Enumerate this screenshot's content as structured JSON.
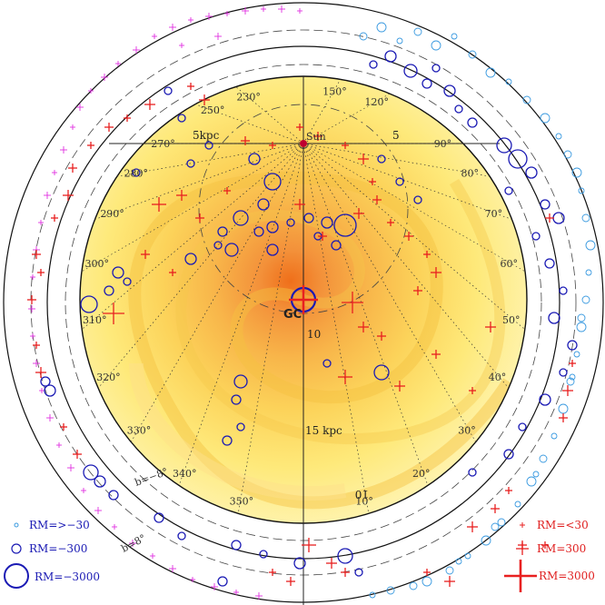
{
  "labels": {
    "sun": "Sun",
    "gc": "GC",
    "dist_5": "5",
    "dist_5kpc": "5kpc",
    "dist_10": "10",
    "dist_15": "15 kpc",
    "b_minus": "b=−8°",
    "b_minus_small": "b=−8°",
    "b_plus": "b=8°",
    "dist_inverted": "10"
  },
  "longitudes": [
    {
      "text": "150°",
      "deg": 150
    },
    {
      "text": "120°",
      "deg": 120
    },
    {
      "text": "90°",
      "deg": 90
    },
    {
      "text": "80°",
      "deg": 80
    },
    {
      "text": "70°",
      "deg": 70
    },
    {
      "text": "60°",
      "deg": 60
    },
    {
      "text": "50°",
      "deg": 50
    },
    {
      "text": "40°",
      "deg": 40
    },
    {
      "text": "30°",
      "deg": 30
    },
    {
      "text": "20°",
      "deg": 20
    },
    {
      "text": "10°",
      "deg": 10
    },
    {
      "text": "350°",
      "deg": 350
    },
    {
      "text": "340°",
      "deg": 340
    },
    {
      "text": "330°",
      "deg": 330
    },
    {
      "text": "320°",
      "deg": 320
    },
    {
      "text": "310°",
      "deg": 310
    },
    {
      "text": "300°",
      "deg": 300
    },
    {
      "text": "290°",
      "deg": 290
    },
    {
      "text": "280°",
      "deg": 280
    },
    {
      "text": "270°",
      "deg": 270
    },
    {
      "text": "250°",
      "deg": 250
    },
    {
      "text": "230°",
      "deg": 230
    }
  ],
  "legend": {
    "neg_small": "RM=>−30",
    "neg_mid": "RM=−300",
    "neg_big": "RM=−3000",
    "pos_small": "RM=<30",
    "pos_mid": "RM=300",
    "pos_big": "RM=3000"
  },
  "colors": {
    "negative_rm": "#1a1ab4",
    "negative_rm_outer": "#3a9ae0",
    "positive_rm": "#e82020",
    "positive_rm_outer": "#e030e0",
    "map_inner": "#f08020",
    "map_outer": "#fff2b0"
  },
  "markers": {
    "neg": [
      [
        411,
        71,
        4
      ],
      [
        430,
        62,
        6
      ],
      [
        452,
        78,
        7
      ],
      [
        470,
        92,
        5
      ],
      [
        480,
        75,
        4
      ],
      [
        495,
        100,
        6
      ],
      [
        505,
        120,
        4
      ],
      [
        520,
        135,
        5
      ],
      [
        555,
        160,
        8
      ],
      [
        570,
        175,
        10
      ],
      [
        585,
        190,
        6
      ],
      [
        560,
        210,
        4
      ],
      [
        600,
        225,
        5
      ],
      [
        615,
        240,
        6
      ],
      [
        590,
        260,
        4
      ],
      [
        605,
        290,
        5
      ],
      [
        620,
        320,
        4
      ],
      [
        610,
        350,
        6
      ],
      [
        630,
        380,
        5
      ],
      [
        620,
        410,
        4
      ],
      [
        600,
        440,
        6
      ],
      [
        575,
        470,
        4
      ],
      [
        560,
        500,
        5
      ],
      [
        520,
        520,
        4
      ],
      [
        280,
        175,
        6
      ],
      [
        300,
        200,
        9
      ],
      [
        290,
        225,
        6
      ],
      [
        265,
        240,
        8
      ],
      [
        245,
        255,
        5
      ],
      [
        255,
        275,
        7
      ],
      [
        300,
        250,
        6
      ],
      [
        320,
        245,
        4
      ],
      [
        340,
        240,
        5
      ],
      [
        360,
        245,
        6
      ],
      [
        380,
        248,
        12
      ],
      [
        350,
        260,
        4
      ],
      [
        370,
        270,
        5
      ],
      [
        300,
        275,
        6
      ],
      [
        285,
        255,
        5
      ],
      [
        130,
        300,
        6
      ],
      [
        120,
        320,
        5
      ],
      [
        98,
        335,
        9
      ],
      [
        140,
        310,
        4
      ],
      [
        210,
        285,
        6
      ],
      [
        240,
        270,
        4
      ],
      [
        334,
        330,
        13
      ],
      [
        420,
        410,
        8
      ],
      [
        360,
        400,
        4
      ],
      [
        265,
        420,
        7
      ],
      [
        260,
        440,
        5
      ],
      [
        265,
        470,
        4
      ],
      [
        250,
        485,
        5
      ],
      [
        100,
        520,
        8
      ],
      [
        110,
        530,
        6
      ],
      [
        125,
        545,
        5
      ],
      [
        50,
        420,
        5
      ],
      [
        55,
        430,
        6
      ],
      [
        175,
        570,
        5
      ],
      [
        200,
        590,
        4
      ],
      [
        260,
        600,
        5
      ],
      [
        290,
        610,
        4
      ],
      [
        330,
        620,
        6
      ],
      [
        380,
        612,
        8
      ],
      [
        395,
        630,
        4
      ],
      [
        245,
        640,
        5
      ],
      [
        150,
        190,
        4
      ],
      [
        210,
        180,
        4
      ],
      [
        230,
        160,
        4
      ],
      [
        200,
        130,
        4
      ],
      [
        185,
        100,
        4
      ],
      [
        420,
        175,
        4
      ],
      [
        440,
        200,
        4
      ],
      [
        460,
        220,
        4
      ]
    ],
    "pos": [
      [
        225,
        110,
        6
      ],
      [
        210,
        95,
        4
      ],
      [
        165,
        115,
        6
      ],
      [
        140,
        130,
        4
      ],
      [
        120,
        140,
        5
      ],
      [
        100,
        160,
        4
      ],
      [
        80,
        185,
        5
      ],
      [
        75,
        215,
        6
      ],
      [
        60,
        240,
        4
      ],
      [
        40,
        280,
        5
      ],
      [
        45,
        300,
        4
      ],
      [
        35,
        330,
        5
      ],
      [
        40,
        380,
        4
      ],
      [
        45,
        410,
        6
      ],
      [
        70,
        470,
        4
      ],
      [
        85,
        500,
        5
      ],
      [
        175,
        225,
        8
      ],
      [
        200,
        215,
        6
      ],
      [
        220,
        240,
        5
      ],
      [
        250,
        210,
        4
      ],
      [
        330,
        140,
        4
      ],
      [
        350,
        150,
        5
      ],
      [
        380,
        160,
        4
      ],
      [
        400,
        175,
        6
      ],
      [
        410,
        200,
        4
      ],
      [
        415,
        220,
        5
      ],
      [
        395,
        235,
        6
      ],
      [
        430,
        245,
        4
      ],
      [
        450,
        260,
        5
      ],
      [
        470,
        280,
        4
      ],
      [
        480,
        300,
        6
      ],
      [
        460,
        320,
        5
      ],
      [
        388,
        333,
        12
      ],
      [
        400,
        360,
        6
      ],
      [
        420,
        370,
        5
      ],
      [
        380,
        415,
        8
      ],
      [
        440,
        425,
        6
      ],
      [
        480,
        390,
        5
      ],
      [
        520,
        430,
        4
      ],
      [
        540,
        360,
        6
      ],
      [
        125,
        345,
        12
      ],
      [
        160,
        280,
        5
      ],
      [
        190,
        300,
        4
      ],
      [
        330,
        225,
        6
      ],
      [
        355,
        260,
        5
      ],
      [
        300,
        160,
        4
      ],
      [
        270,
        155,
        5
      ],
      [
        340,
        600,
        8
      ],
      [
        365,
        620,
        6
      ],
      [
        380,
        630,
        5
      ],
      [
        300,
        630,
        4
      ],
      [
        320,
        640,
        5
      ],
      [
        520,
        580,
        6
      ],
      [
        545,
        560,
        5
      ],
      [
        560,
        540,
        4
      ],
      [
        620,
        460,
        5
      ],
      [
        625,
        430,
        6
      ],
      [
        630,
        400,
        4
      ],
      [
        600,
        600,
        4
      ],
      [
        575,
        600,
        5
      ],
      [
        495,
        640,
        6
      ],
      [
        470,
        630,
        4
      ],
      [
        605,
        240,
        5
      ]
    ],
    "outer_neg": [
      [
        400,
        40,
        4
      ],
      [
        420,
        30,
        5
      ],
      [
        440,
        45,
        3
      ],
      [
        460,
        35,
        4
      ],
      [
        480,
        50,
        5
      ],
      [
        500,
        40,
        3
      ],
      [
        520,
        60,
        4
      ],
      [
        540,
        80,
        5
      ],
      [
        560,
        90,
        3
      ],
      [
        580,
        110,
        4
      ],
      [
        600,
        130,
        5
      ],
      [
        615,
        150,
        3
      ],
      [
        625,
        170,
        4
      ],
      [
        635,
        190,
        5
      ],
      [
        640,
        210,
        3
      ],
      [
        645,
        240,
        4
      ],
      [
        650,
        270,
        5
      ],
      [
        648,
        300,
        3
      ],
      [
        645,
        330,
        4
      ],
      [
        640,
        360,
        5
      ],
      [
        635,
        390,
        3
      ],
      [
        628,
        420,
        4
      ],
      [
        620,
        450,
        5
      ],
      [
        610,
        480,
        3
      ],
      [
        598,
        505,
        4
      ],
      [
        585,
        530,
        5
      ],
      [
        570,
        555,
        3
      ],
      [
        552,
        575,
        4
      ],
      [
        535,
        595,
        5
      ],
      [
        515,
        612,
        3
      ],
      [
        495,
        628,
        4
      ],
      [
        470,
        640,
        5
      ],
      [
        430,
        650,
        4
      ],
      [
        410,
        655,
        3
      ],
      [
        455,
        645,
        4
      ],
      [
        505,
        618,
        3
      ],
      [
        545,
        580,
        4
      ],
      [
        590,
        522,
        3
      ],
      [
        630,
        415,
        3
      ],
      [
        640,
        350,
        4
      ]
    ],
    "outer_pos": [
      [
        170,
        40,
        3
      ],
      [
        190,
        30,
        4
      ],
      [
        210,
        22,
        3
      ],
      [
        230,
        18,
        4
      ],
      [
        250,
        15,
        3
      ],
      [
        270,
        12,
        4
      ],
      [
        290,
        10,
        3
      ],
      [
        310,
        10,
        4
      ],
      [
        330,
        12,
        3
      ],
      [
        150,
        55,
        4
      ],
      [
        130,
        70,
        3
      ],
      [
        115,
        85,
        4
      ],
      [
        100,
        100,
        3
      ],
      [
        88,
        118,
        4
      ],
      [
        80,
        140,
        3
      ],
      [
        70,
        165,
        4
      ],
      [
        60,
        190,
        3
      ],
      [
        52,
        215,
        4
      ],
      [
        45,
        245,
        3
      ],
      [
        40,
        275,
        4
      ],
      [
        36,
        305,
        3
      ],
      [
        35,
        340,
        4
      ],
      [
        36,
        370,
        3
      ],
      [
        40,
        400,
        4
      ],
      [
        46,
        430,
        3
      ],
      [
        55,
        460,
        4
      ],
      [
        65,
        490,
        3
      ],
      [
        78,
        515,
        4
      ],
      [
        92,
        540,
        3
      ],
      [
        108,
        562,
        4
      ],
      [
        126,
        580,
        3
      ],
      [
        146,
        598,
        4
      ],
      [
        168,
        612,
        3
      ],
      [
        190,
        626,
        4
      ],
      [
        212,
        638,
        3
      ],
      [
        236,
        646,
        4
      ],
      [
        260,
        652,
        3
      ],
      [
        285,
        656,
        4
      ],
      [
        200,
        50,
        3
      ],
      [
        240,
        40,
        4
      ]
    ]
  }
}
